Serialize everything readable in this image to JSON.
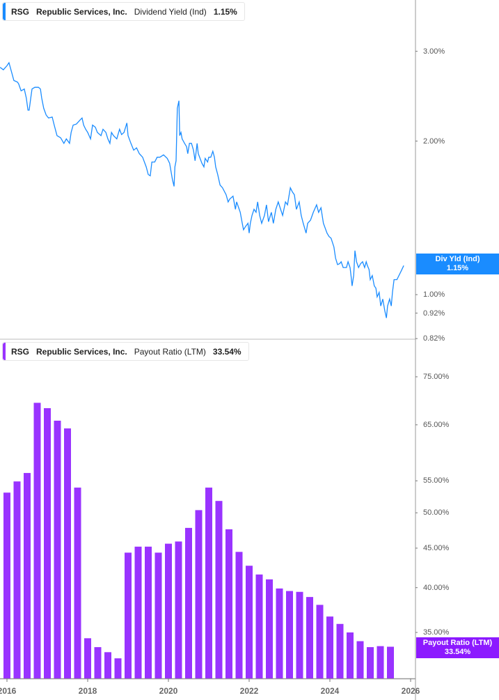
{
  "colors": {
    "yield_line": "#1a8cff",
    "payout_bar": "#9933ff",
    "payout_flag": "#8c1aff",
    "axis": "#999999"
  },
  "top_legend": {
    "ticker": "RSG",
    "company": "Republic Services, Inc.",
    "metric": "Dividend Yield (Ind)",
    "value": "1.15%"
  },
  "bottom_legend": {
    "ticker": "RSG",
    "company": "Republic Services, Inc.",
    "metric": "Payout Ratio (LTM)",
    "value": "33.54%"
  },
  "top_flag": {
    "label": "Div Yld (Ind)",
    "value": "1.15%"
  },
  "bottom_flag": {
    "label": "Payout Ratio (LTM)",
    "value": "33.54%"
  },
  "chart_data": [
    {
      "type": "line",
      "title": "Dividend Yield (Ind)",
      "yscale": "log",
      "ylim": [
        0.82,
        3.4
      ],
      "y_ticks": [
        "3.00%",
        "2.00%",
        "1.00%",
        "0.92%",
        "0.82%"
      ],
      "y_tick_values": [
        3.0,
        2.0,
        1.0,
        0.92,
        0.82
      ],
      "series": [
        {
          "name": "RSG Dividend Yield (Ind)",
          "points": [
            [
              2015.83,
              2.79
            ],
            [
              2015.91,
              2.76
            ],
            [
              2016.0,
              2.81
            ],
            [
              2016.05,
              2.85
            ],
            [
              2016.12,
              2.72
            ],
            [
              2016.17,
              2.63
            ],
            [
              2016.26,
              2.61
            ],
            [
              2016.29,
              2.59
            ],
            [
              2016.35,
              2.51
            ],
            [
              2016.43,
              2.53
            ],
            [
              2016.48,
              2.43
            ],
            [
              2016.52,
              2.3
            ],
            [
              2016.55,
              2.3
            ],
            [
              2016.59,
              2.43
            ],
            [
              2016.62,
              2.53
            ],
            [
              2016.69,
              2.55
            ],
            [
              2016.78,
              2.55
            ],
            [
              2016.83,
              2.53
            ],
            [
              2016.86,
              2.43
            ],
            [
              2016.91,
              2.32
            ],
            [
              2016.97,
              2.25
            ],
            [
              2017.03,
              2.22
            ],
            [
              2017.12,
              2.23
            ],
            [
              2017.17,
              2.15
            ],
            [
              2017.24,
              2.05
            ],
            [
              2017.33,
              2.03
            ],
            [
              2017.41,
              1.98
            ],
            [
              2017.47,
              2.02
            ],
            [
              2017.55,
              1.98
            ],
            [
              2017.59,
              2.08
            ],
            [
              2017.64,
              2.15
            ],
            [
              2017.72,
              2.16
            ],
            [
              2017.81,
              2.2
            ],
            [
              2017.86,
              2.22
            ],
            [
              2017.9,
              2.15
            ],
            [
              2017.95,
              2.11
            ],
            [
              2018.0,
              2.08
            ],
            [
              2018.07,
              2.02
            ],
            [
              2018.12,
              2.15
            ],
            [
              2018.19,
              2.13
            ],
            [
              2018.24,
              2.08
            ],
            [
              2018.33,
              2.05
            ],
            [
              2018.38,
              2.11
            ],
            [
              2018.45,
              2.08
            ],
            [
              2018.5,
              2.02
            ],
            [
              2018.55,
              1.98
            ],
            [
              2018.59,
              2.08
            ],
            [
              2018.64,
              2.05
            ],
            [
              2018.72,
              2.02
            ],
            [
              2018.79,
              2.11
            ],
            [
              2018.84,
              2.06
            ],
            [
              2018.9,
              2.08
            ],
            [
              2018.97,
              2.17
            ],
            [
              2019.0,
              2.05
            ],
            [
              2019.07,
              1.98
            ],
            [
              2019.14,
              1.92
            ],
            [
              2019.21,
              1.94
            ],
            [
              2019.28,
              1.89
            ],
            [
              2019.36,
              1.86
            ],
            [
              2019.45,
              1.78
            ],
            [
              2019.5,
              1.72
            ],
            [
              2019.55,
              1.71
            ],
            [
              2019.59,
              1.82
            ],
            [
              2019.66,
              1.82
            ],
            [
              2019.72,
              1.86
            ],
            [
              2019.79,
              1.86
            ],
            [
              2019.88,
              1.88
            ],
            [
              2019.97,
              1.85
            ],
            [
              2020.03,
              1.81
            ],
            [
              2020.1,
              1.68
            ],
            [
              2020.14,
              1.63
            ],
            [
              2020.16,
              1.78
            ],
            [
              2020.19,
              1.83
            ],
            [
              2020.22,
              2.32
            ],
            [
              2020.26,
              2.4
            ],
            [
              2020.28,
              2.05
            ],
            [
              2020.31,
              2.08
            ],
            [
              2020.34,
              2.02
            ],
            [
              2020.4,
              1.98
            ],
            [
              2020.45,
              1.95
            ],
            [
              2020.48,
              1.89
            ],
            [
              2020.52,
              1.98
            ],
            [
              2020.57,
              1.98
            ],
            [
              2020.62,
              1.92
            ],
            [
              2020.66,
              1.83
            ],
            [
              2020.71,
              1.98
            ],
            [
              2020.74,
              1.89
            ],
            [
              2020.83,
              1.81
            ],
            [
              2020.88,
              1.78
            ],
            [
              2020.91,
              1.85
            ],
            [
              2020.97,
              1.82
            ],
            [
              2021.0,
              1.86
            ],
            [
              2021.05,
              1.86
            ],
            [
              2021.1,
              1.91
            ],
            [
              2021.14,
              1.86
            ],
            [
              2021.17,
              1.78
            ],
            [
              2021.22,
              1.72
            ],
            [
              2021.28,
              1.64
            ],
            [
              2021.34,
              1.62
            ],
            [
              2021.43,
              1.57
            ],
            [
              2021.48,
              1.52
            ],
            [
              2021.52,
              1.54
            ],
            [
              2021.6,
              1.56
            ],
            [
              2021.66,
              1.47
            ],
            [
              2021.69,
              1.52
            ],
            [
              2021.78,
              1.45
            ],
            [
              2021.83,
              1.38
            ],
            [
              2021.86,
              1.34
            ],
            [
              2021.91,
              1.36
            ],
            [
              2021.97,
              1.38
            ],
            [
              2022.0,
              1.32
            ],
            [
              2022.03,
              1.38
            ],
            [
              2022.07,
              1.43
            ],
            [
              2022.12,
              1.47
            ],
            [
              2022.17,
              1.45
            ],
            [
              2022.21,
              1.52
            ],
            [
              2022.26,
              1.43
            ],
            [
              2022.31,
              1.38
            ],
            [
              2022.38,
              1.43
            ],
            [
              2022.43,
              1.5
            ],
            [
              2022.48,
              1.39
            ],
            [
              2022.55,
              1.45
            ],
            [
              2022.6,
              1.38
            ],
            [
              2022.66,
              1.47
            ],
            [
              2022.72,
              1.52
            ],
            [
              2022.78,
              1.47
            ],
            [
              2022.83,
              1.43
            ],
            [
              2022.9,
              1.52
            ],
            [
              2022.95,
              1.5
            ],
            [
              2023.02,
              1.62
            ],
            [
              2023.07,
              1.59
            ],
            [
              2023.12,
              1.57
            ],
            [
              2023.17,
              1.47
            ],
            [
              2023.24,
              1.52
            ],
            [
              2023.29,
              1.43
            ],
            [
              2023.34,
              1.38
            ],
            [
              2023.41,
              1.32
            ],
            [
              2023.45,
              1.38
            ],
            [
              2023.52,
              1.4
            ],
            [
              2023.59,
              1.45
            ],
            [
              2023.67,
              1.5
            ],
            [
              2023.72,
              1.45
            ],
            [
              2023.78,
              1.48
            ],
            [
              2023.84,
              1.38
            ],
            [
              2023.93,
              1.32
            ],
            [
              2023.98,
              1.3
            ],
            [
              2024.03,
              1.29
            ],
            [
              2024.1,
              1.24
            ],
            [
              2024.14,
              1.18
            ],
            [
              2024.19,
              1.145
            ],
            [
              2024.24,
              1.15
            ],
            [
              2024.28,
              1.16
            ],
            [
              2024.33,
              1.13
            ],
            [
              2024.38,
              1.13
            ],
            [
              2024.41,
              1.13
            ],
            [
              2024.45,
              1.16
            ],
            [
              2024.5,
              1.13
            ],
            [
              2024.53,
              1.08
            ],
            [
              2024.55,
              1.04
            ],
            [
              2024.59,
              1.09
            ],
            [
              2024.62,
              1.22
            ],
            [
              2024.66,
              1.16
            ],
            [
              2024.71,
              1.13
            ],
            [
              2024.76,
              1.15
            ],
            [
              2024.81,
              1.16
            ],
            [
              2024.86,
              1.13
            ],
            [
              2024.9,
              1.16
            ],
            [
              2024.93,
              1.14
            ],
            [
              2024.97,
              1.12
            ],
            [
              2025.0,
              1.07
            ],
            [
              2025.05,
              1.09
            ],
            [
              2025.1,
              1.04
            ],
            [
              2025.14,
              1.03
            ],
            [
              2025.17,
              0.99
            ],
            [
              2025.22,
              1.01
            ],
            [
              2025.26,
              0.95
            ],
            [
              2025.31,
              0.98
            ],
            [
              2025.36,
              0.93
            ],
            [
              2025.4,
              0.9
            ],
            [
              2025.43,
              0.95
            ],
            [
              2025.48,
              0.98
            ],
            [
              2025.52,
              0.95
            ],
            [
              2025.55,
              1.01
            ],
            [
              2025.59,
              1.07
            ],
            [
              2025.62,
              1.07
            ],
            [
              2025.66,
              1.07
            ],
            [
              2025.71,
              1.09
            ],
            [
              2025.76,
              1.11
            ],
            [
              2025.83,
              1.14
            ]
          ]
        }
      ]
    },
    {
      "type": "bar",
      "title": "Payout Ratio (LTM)",
      "yscale": "log",
      "ylim": [
        31.5,
        80
      ],
      "y_ticks": [
        "75.00%",
        "65.00%",
        "55.00%",
        "50.00%",
        "45.00%",
        "40.00%",
        "35.00%"
      ],
      "y_tick_values": [
        75,
        65,
        55,
        50,
        45,
        40,
        35
      ],
      "x_ticks": [
        "2016",
        "2018",
        "2020",
        "2022",
        "2024",
        "2026"
      ],
      "categories": [
        "2015 Q4",
        "2016 Q1",
        "2016 Q2",
        "2016 Q3",
        "2016 Q4",
        "2017 Q1",
        "2017 Q2",
        "2017 Q3",
        "2017 Q4",
        "2018 Q1",
        "2018 Q2",
        "2018 Q3",
        "2018 Q4",
        "2019 Q1",
        "2019 Q2",
        "2019 Q3",
        "2019 Q4",
        "2020 Q1",
        "2020 Q2",
        "2020 Q3",
        "2020 Q4",
        "2021 Q1",
        "2021 Q2",
        "2021 Q3",
        "2021 Q4",
        "2022 Q1",
        "2022 Q2",
        "2022 Q3",
        "2022 Q4",
        "2023 Q1",
        "2023 Q2",
        "2023 Q3",
        "2023 Q4",
        "2024 Q1",
        "2024 Q2",
        "2024 Q3",
        "2024 Q4",
        "2025 Q1",
        "2025 Q2"
      ],
      "values": [
        53.1,
        54.9,
        56.3,
        69.4,
        68.3,
        65.8,
        64.3,
        53.9,
        34.4,
        33.5,
        33.0,
        32.4,
        44.4,
        45.2,
        45.2,
        44.4,
        45.6,
        45.9,
        47.8,
        50.4,
        53.9,
        51.8,
        47.6,
        44.5,
        42.7,
        41.6,
        41.0,
        39.9,
        39.6,
        39.5,
        38.9,
        38.0,
        36.7,
        35.9,
        35.0,
        34.1,
        33.5,
        33.6,
        33.54
      ]
    }
  ]
}
